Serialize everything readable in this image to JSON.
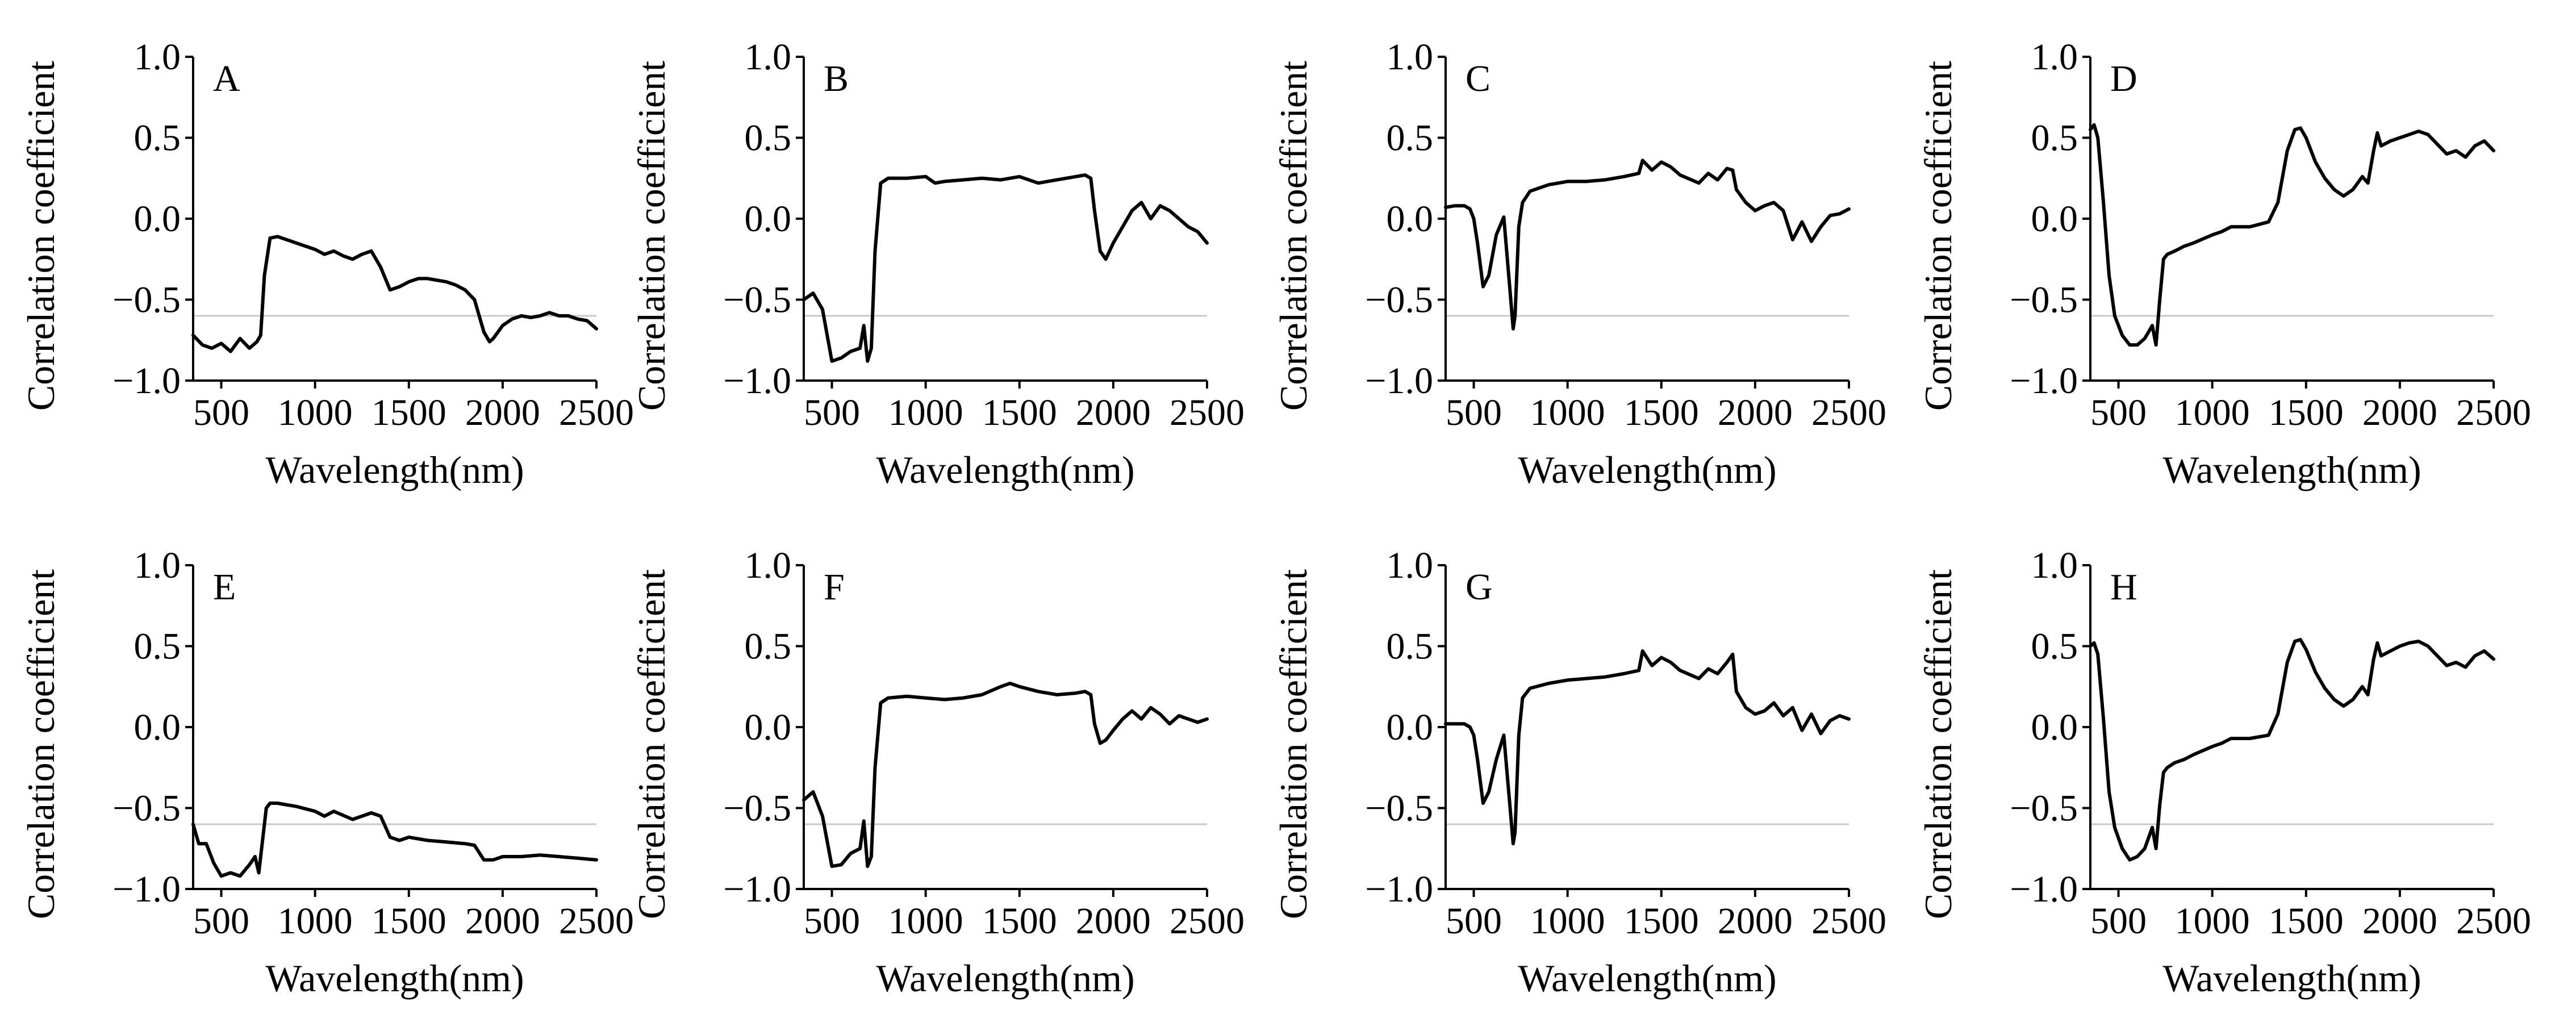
{
  "figure": {
    "background": "#ffffff",
    "line_color": "#000000",
    "reference_line_color": "#c8c8c8"
  },
  "chart_data": [
    {
      "type": "line",
      "panel": "A",
      "xlabel": "Wavelength(nm)",
      "ylabel": "Correlation coefficient",
      "xlim": [
        350,
        2500
      ],
      "ylim": [
        -1.0,
        1.0
      ],
      "xticks": [
        "500",
        "1000",
        "1500",
        "2000",
        "2500"
      ],
      "xtick_values": [
        500,
        1000,
        1500,
        2000,
        2500
      ],
      "yticks": [
        "−1.0",
        "−0.5",
        "0.0",
        "0.5",
        "1.0"
      ],
      "ytick_values": [
        -1.0,
        -0.5,
        0.0,
        0.5,
        1.0
      ],
      "reference_line": -0.6,
      "x": [
        350,
        400,
        450,
        500,
        550,
        600,
        650,
        690,
        710,
        730,
        760,
        800,
        900,
        1000,
        1050,
        1100,
        1150,
        1200,
        1250,
        1300,
        1350,
        1400,
        1450,
        1500,
        1550,
        1600,
        1650,
        1700,
        1750,
        1800,
        1850,
        1900,
        1930,
        1950,
        2000,
        2050,
        2100,
        2150,
        2200,
        2250,
        2300,
        2350,
        2400,
        2450,
        2500
      ],
      "y": [
        -0.72,
        -0.78,
        -0.8,
        -0.77,
        -0.82,
        -0.74,
        -0.8,
        -0.76,
        -0.72,
        -0.35,
        -0.12,
        -0.11,
        -0.15,
        -0.19,
        -0.22,
        -0.2,
        -0.23,
        -0.25,
        -0.22,
        -0.2,
        -0.3,
        -0.44,
        -0.42,
        -0.39,
        -0.37,
        -0.37,
        -0.38,
        -0.39,
        -0.41,
        -0.44,
        -0.5,
        -0.7,
        -0.76,
        -0.74,
        -0.66,
        -0.62,
        -0.6,
        -0.61,
        -0.6,
        -0.58,
        -0.6,
        -0.6,
        -0.62,
        -0.63,
        -0.68
      ]
    },
    {
      "type": "line",
      "panel": "B",
      "xlabel": "Wavelength(nm)",
      "ylabel": "Correlation coefficient",
      "xlim": [
        350,
        2500
      ],
      "ylim": [
        -1.0,
        1.0
      ],
      "xticks": [
        "500",
        "1000",
        "1500",
        "2000",
        "2500"
      ],
      "xtick_values": [
        500,
        1000,
        1500,
        2000,
        2500
      ],
      "yticks": [
        "−1.0",
        "−0.5",
        "0.0",
        "0.5",
        "1.0"
      ],
      "ytick_values": [
        -1.0,
        -0.5,
        0.0,
        0.5,
        1.0
      ],
      "reference_line": -0.6,
      "x": [
        350,
        400,
        450,
        500,
        550,
        600,
        650,
        670,
        690,
        710,
        730,
        760,
        800,
        900,
        1000,
        1050,
        1100,
        1200,
        1300,
        1400,
        1500,
        1600,
        1700,
        1800,
        1850,
        1880,
        1900,
        1930,
        1960,
        2000,
        2050,
        2100,
        2150,
        2200,
        2250,
        2300,
        2350,
        2400,
        2450,
        2500
      ],
      "y": [
        -0.5,
        -0.46,
        -0.56,
        -0.88,
        -0.86,
        -0.82,
        -0.8,
        -0.66,
        -0.88,
        -0.8,
        -0.2,
        0.22,
        0.25,
        0.25,
        0.26,
        0.22,
        0.23,
        0.24,
        0.25,
        0.24,
        0.26,
        0.22,
        0.24,
        0.26,
        0.27,
        0.25,
        0.05,
        -0.2,
        -0.25,
        -0.15,
        -0.05,
        0.05,
        0.1,
        0.0,
        0.08,
        0.05,
        0.0,
        -0.05,
        -0.08,
        -0.15
      ]
    },
    {
      "type": "line",
      "panel": "C",
      "xlabel": "Wavelength(nm)",
      "ylabel": "Correlation coefficient",
      "xlim": [
        350,
        2500
      ],
      "ylim": [
        -1.0,
        1.0
      ],
      "xticks": [
        "500",
        "1000",
        "1500",
        "2000",
        "2500"
      ],
      "xtick_values": [
        500,
        1000,
        1500,
        2000,
        2500
      ],
      "yticks": [
        "−1.0",
        "−0.5",
        "0.0",
        "0.5",
        "1.0"
      ],
      "ytick_values": [
        -1.0,
        -0.5,
        0.0,
        0.5,
        1.0
      ],
      "reference_line": -0.6,
      "x": [
        350,
        400,
        450,
        480,
        500,
        520,
        550,
        580,
        620,
        660,
        690,
        710,
        720,
        740,
        760,
        800,
        900,
        1000,
        1100,
        1200,
        1300,
        1380,
        1400,
        1450,
        1500,
        1550,
        1600,
        1700,
        1750,
        1800,
        1850,
        1880,
        1900,
        1950,
        2000,
        2050,
        2100,
        2150,
        2200,
        2250,
        2300,
        2350,
        2400,
        2450,
        2500
      ],
      "y": [
        0.07,
        0.08,
        0.08,
        0.06,
        0.0,
        -0.15,
        -0.42,
        -0.35,
        -0.1,
        0.01,
        -0.4,
        -0.68,
        -0.6,
        -0.05,
        0.1,
        0.17,
        0.21,
        0.23,
        0.23,
        0.24,
        0.26,
        0.28,
        0.36,
        0.3,
        0.35,
        0.32,
        0.27,
        0.22,
        0.28,
        0.24,
        0.31,
        0.3,
        0.18,
        0.1,
        0.05,
        0.08,
        0.1,
        0.05,
        -0.13,
        -0.02,
        -0.14,
        -0.05,
        0.02,
        0.03,
        0.06
      ]
    },
    {
      "type": "line",
      "panel": "D",
      "xlabel": "Wavelength(nm)",
      "ylabel": "Correlation coefficient",
      "xlim": [
        350,
        2500
      ],
      "ylim": [
        -1.0,
        1.0
      ],
      "xticks": [
        "500",
        "1000",
        "1500",
        "2000",
        "2500"
      ],
      "xtick_values": [
        500,
        1000,
        1500,
        2000,
        2500
      ],
      "yticks": [
        "−1.0",
        "−0.5",
        "0.0",
        "0.5",
        "1.0"
      ],
      "ytick_values": [
        -1.0,
        -0.5,
        0.0,
        0.5,
        1.0
      ],
      "reference_line": -0.6,
      "x": [
        350,
        370,
        390,
        420,
        450,
        480,
        520,
        560,
        600,
        640,
        680,
        700,
        720,
        740,
        760,
        800,
        850,
        900,
        1000,
        1050,
        1100,
        1150,
        1200,
        1300,
        1350,
        1400,
        1440,
        1470,
        1500,
        1550,
        1600,
        1650,
        1700,
        1750,
        1800,
        1830,
        1860,
        1880,
        1900,
        1950,
        2000,
        2050,
        2100,
        2150,
        2200,
        2250,
        2300,
        2350,
        2400,
        2450,
        2500
      ],
      "y": [
        0.55,
        0.58,
        0.5,
        0.1,
        -0.35,
        -0.6,
        -0.72,
        -0.78,
        -0.78,
        -0.74,
        -0.66,
        -0.78,
        -0.5,
        -0.25,
        -0.22,
        -0.2,
        -0.17,
        -0.15,
        -0.1,
        -0.08,
        -0.05,
        -0.05,
        -0.05,
        -0.02,
        0.1,
        0.42,
        0.55,
        0.56,
        0.5,
        0.35,
        0.25,
        0.18,
        0.14,
        0.18,
        0.26,
        0.22,
        0.42,
        0.53,
        0.45,
        0.48,
        0.5,
        0.52,
        0.54,
        0.52,
        0.46,
        0.4,
        0.42,
        0.38,
        0.45,
        0.48,
        0.42
      ]
    },
    {
      "type": "line",
      "panel": "E",
      "xlabel": "Wavelength(nm)",
      "ylabel": "Correlation coefficient",
      "xlim": [
        350,
        2500
      ],
      "ylim": [
        -1.0,
        1.0
      ],
      "xticks": [
        "500",
        "1000",
        "1500",
        "2000",
        "2500"
      ],
      "xtick_values": [
        500,
        1000,
        1500,
        2000,
        2500
      ],
      "yticks": [
        "−1.0",
        "−0.5",
        "0.0",
        "0.5",
        "1.0"
      ],
      "ytick_values": [
        -1.0,
        -0.5,
        0.0,
        0.5,
        1.0
      ],
      "reference_line": -0.6,
      "x": [
        350,
        380,
        420,
        460,
        500,
        550,
        600,
        650,
        680,
        700,
        720,
        740,
        760,
        800,
        900,
        1000,
        1050,
        1100,
        1200,
        1300,
        1350,
        1400,
        1450,
        1500,
        1600,
        1700,
        1800,
        1850,
        1900,
        1950,
        2000,
        2100,
        2200,
        2300,
        2400,
        2500
      ],
      "y": [
        -0.6,
        -0.72,
        -0.72,
        -0.84,
        -0.92,
        -0.9,
        -0.92,
        -0.85,
        -0.8,
        -0.9,
        -0.7,
        -0.5,
        -0.47,
        -0.47,
        -0.49,
        -0.52,
        -0.55,
        -0.52,
        -0.57,
        -0.53,
        -0.55,
        -0.68,
        -0.7,
        -0.68,
        -0.7,
        -0.71,
        -0.72,
        -0.73,
        -0.82,
        -0.82,
        -0.8,
        -0.8,
        -0.79,
        -0.8,
        -0.81,
        -0.82
      ]
    },
    {
      "type": "line",
      "panel": "F",
      "xlabel": "Wavelength(nm)",
      "ylabel": "Correlation coefficient",
      "xlim": [
        350,
        2500
      ],
      "ylim": [
        -1.0,
        1.0
      ],
      "xticks": [
        "500",
        "1000",
        "1500",
        "2000",
        "2500"
      ],
      "xtick_values": [
        500,
        1000,
        1500,
        2000,
        2500
      ],
      "yticks": [
        "−1.0",
        "−0.5",
        "0.0",
        "0.5",
        "1.0"
      ],
      "ytick_values": [
        -1.0,
        -0.5,
        0.0,
        0.5,
        1.0
      ],
      "reference_line": -0.6,
      "x": [
        350,
        400,
        450,
        500,
        550,
        600,
        650,
        670,
        690,
        710,
        730,
        760,
        800,
        900,
        1000,
        1100,
        1200,
        1300,
        1400,
        1450,
        1500,
        1600,
        1700,
        1800,
        1850,
        1880,
        1900,
        1930,
        1960,
        2000,
        2050,
        2100,
        2150,
        2200,
        2250,
        2300,
        2350,
        2400,
        2450,
        2500
      ],
      "y": [
        -0.45,
        -0.4,
        -0.55,
        -0.86,
        -0.85,
        -0.78,
        -0.75,
        -0.58,
        -0.86,
        -0.8,
        -0.25,
        0.15,
        0.18,
        0.19,
        0.18,
        0.17,
        0.18,
        0.2,
        0.25,
        0.27,
        0.25,
        0.22,
        0.2,
        0.21,
        0.22,
        0.2,
        0.02,
        -0.1,
        -0.08,
        -0.02,
        0.05,
        0.1,
        0.05,
        0.12,
        0.08,
        0.02,
        0.07,
        0.05,
        0.03,
        0.05
      ]
    },
    {
      "type": "line",
      "panel": "G",
      "xlabel": "Wavelength(nm)",
      "ylabel": "Correlation coefficient",
      "xlim": [
        350,
        2500
      ],
      "ylim": [
        -1.0,
        1.0
      ],
      "xticks": [
        "500",
        "1000",
        "1500",
        "2000",
        "2500"
      ],
      "xtick_values": [
        500,
        1000,
        1500,
        2000,
        2500
      ],
      "yticks": [
        "−1.0",
        "−0.5",
        "0.0",
        "0.5",
        "1.0"
      ],
      "ytick_values": [
        -1.0,
        -0.5,
        0.0,
        0.5,
        1.0
      ],
      "reference_line": -0.6,
      "x": [
        350,
        400,
        450,
        480,
        500,
        520,
        550,
        580,
        620,
        660,
        690,
        710,
        720,
        740,
        760,
        800,
        900,
        1000,
        1100,
        1200,
        1300,
        1380,
        1400,
        1450,
        1500,
        1550,
        1600,
        1700,
        1750,
        1800,
        1850,
        1880,
        1900,
        1950,
        2000,
        2050,
        2100,
        2150,
        2200,
        2250,
        2300,
        2350,
        2400,
        2450,
        2500
      ],
      "y": [
        0.02,
        0.02,
        0.02,
        0.0,
        -0.05,
        -0.2,
        -0.47,
        -0.4,
        -0.2,
        -0.05,
        -0.45,
        -0.72,
        -0.65,
        -0.05,
        0.18,
        0.24,
        0.27,
        0.29,
        0.3,
        0.31,
        0.33,
        0.35,
        0.47,
        0.38,
        0.43,
        0.4,
        0.35,
        0.3,
        0.36,
        0.33,
        0.4,
        0.45,
        0.22,
        0.12,
        0.08,
        0.1,
        0.15,
        0.07,
        0.12,
        -0.02,
        0.08,
        -0.04,
        0.04,
        0.07,
        0.05
      ]
    },
    {
      "type": "line",
      "panel": "H",
      "xlabel": "Wavelength(nm)",
      "ylabel": "Correlation coefficient",
      "xlim": [
        350,
        2500
      ],
      "ylim": [
        -1.0,
        1.0
      ],
      "xticks": [
        "500",
        "1000",
        "1500",
        "2000",
        "2500"
      ],
      "xtick_values": [
        500,
        1000,
        1500,
        2000,
        2500
      ],
      "yticks": [
        "−1.0",
        "−0.5",
        "0.0",
        "0.5",
        "1.0"
      ],
      "ytick_values": [
        -1.0,
        -0.5,
        0.0,
        0.5,
        1.0
      ],
      "reference_line": -0.6,
      "x": [
        350,
        370,
        390,
        420,
        450,
        480,
        520,
        560,
        600,
        640,
        680,
        700,
        720,
        740,
        760,
        800,
        850,
        900,
        1000,
        1050,
        1100,
        1150,
        1200,
        1300,
        1350,
        1400,
        1440,
        1470,
        1500,
        1550,
        1600,
        1650,
        1700,
        1750,
        1800,
        1830,
        1860,
        1880,
        1900,
        1950,
        2000,
        2050,
        2100,
        2150,
        2200,
        2250,
        2300,
        2350,
        2400,
        2450,
        2500
      ],
      "y": [
        0.5,
        0.52,
        0.45,
        0.05,
        -0.4,
        -0.62,
        -0.75,
        -0.82,
        -0.8,
        -0.75,
        -0.62,
        -0.75,
        -0.48,
        -0.28,
        -0.25,
        -0.22,
        -0.2,
        -0.17,
        -0.12,
        -0.1,
        -0.07,
        -0.07,
        -0.07,
        -0.05,
        0.08,
        0.4,
        0.53,
        0.54,
        0.48,
        0.34,
        0.24,
        0.17,
        0.13,
        0.17,
        0.25,
        0.2,
        0.42,
        0.52,
        0.44,
        0.47,
        0.5,
        0.52,
        0.53,
        0.5,
        0.44,
        0.38,
        0.4,
        0.37,
        0.44,
        0.47,
        0.42
      ]
    }
  ]
}
